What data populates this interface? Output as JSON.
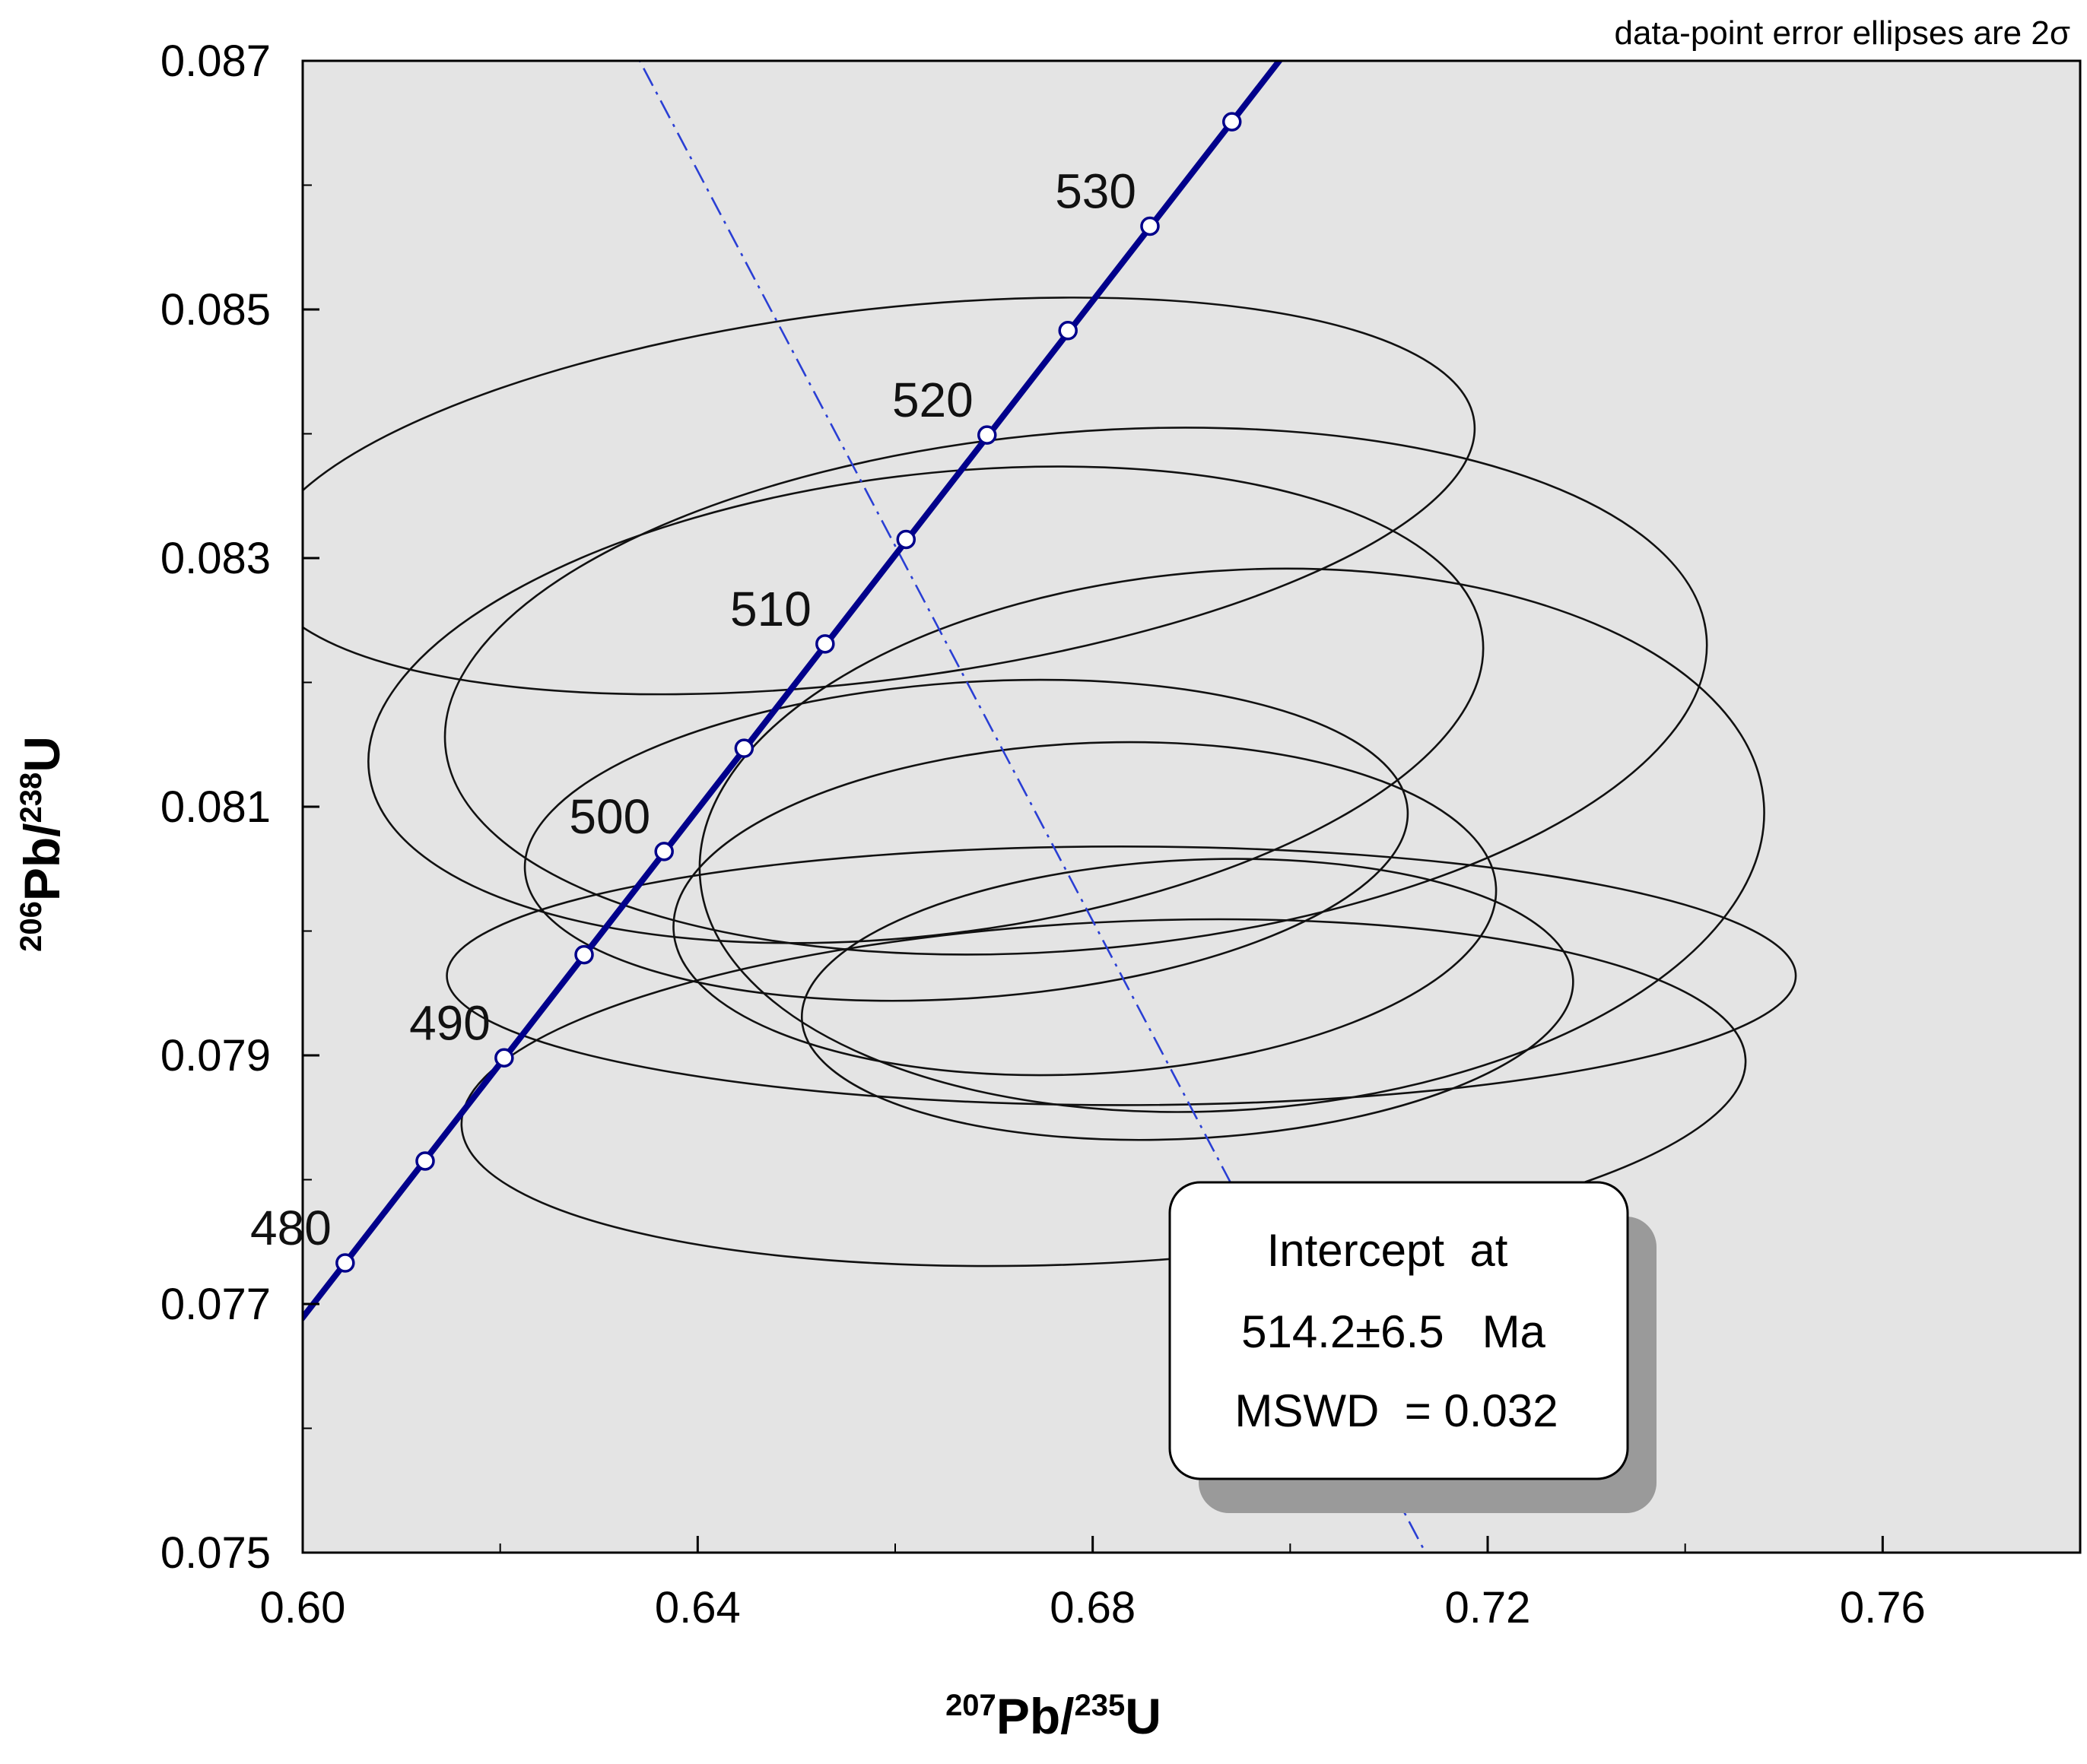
{
  "chart_data": {
    "type": "scatter",
    "subtype": "U-Pb concordia diagram with 2-sigma error ellipses",
    "note": "data-point error ellipses are 2σ",
    "xlabel": {
      "pre": "207",
      "mid": "Pb/",
      "sup2": "235",
      "post": "U"
    },
    "ylabel": {
      "pre": "206",
      "mid": "Pb/",
      "sup2": "238",
      "post": "U"
    },
    "xlim": [
      0.6,
      0.78
    ],
    "ylim": [
      0.075,
      0.087
    ],
    "x_ticks": [
      "0.60",
      "0.64",
      "0.68",
      "0.72",
      "0.76"
    ],
    "y_ticks": [
      "0.075",
      "0.077",
      "0.079",
      "0.081",
      "0.083",
      "0.085",
      "0.087"
    ],
    "x_minor_step": 0.02,
    "y_minor_step": 0.001,
    "grid": false,
    "plot_background": "#e4e4e4",
    "concordia": {
      "color": "#00008b",
      "age_marks": [
        {
          "age": 480,
          "x": 0.6043,
          "y": 0.07733
        },
        {
          "age": 485,
          "x": 0.6124,
          "y": 0.07815
        },
        {
          "age": 490,
          "x": 0.6204,
          "y": 0.07898
        },
        {
          "age": 495,
          "x": 0.6285,
          "y": 0.07981
        },
        {
          "age": 500,
          "x": 0.6366,
          "y": 0.08064
        },
        {
          "age": 505,
          "x": 0.6447,
          "y": 0.08147
        },
        {
          "age": 510,
          "x": 0.6529,
          "y": 0.08231
        },
        {
          "age": 515,
          "x": 0.6611,
          "y": 0.08315
        },
        {
          "age": 520,
          "x": 0.6693,
          "y": 0.08399
        },
        {
          "age": 525,
          "x": 0.6775,
          "y": 0.08483
        },
        {
          "age": 530,
          "x": 0.6858,
          "y": 0.08567
        },
        {
          "age": 535,
          "x": 0.6941,
          "y": 0.08651
        }
      ],
      "labels": [
        "480",
        "490",
        "500",
        "510",
        "520",
        "530"
      ]
    },
    "discordia": {
      "color": "#2a3fd4",
      "points": [
        {
          "x": 0.6328,
          "y": 0.0872
        },
        {
          "x": 0.7137,
          "y": 0.075
        }
      ]
    },
    "ellipses": [
      {
        "cx": 0.6572,
        "cy": 0.0835,
        "rx": 0.0619,
        "ry": 0.00149,
        "angle": 7
      },
      {
        "cx": 0.6783,
        "cy": 0.08193,
        "rx": 0.0641,
        "ry": 0.00208,
        "angle": 5
      },
      {
        "cx": 0.6631,
        "cy": 0.08182,
        "rx": 0.0568,
        "ry": 0.00185,
        "angle": 7
      },
      {
        "cx": 0.6672,
        "cy": 0.08073,
        "rx": 0.0448,
        "ry": 0.00127,
        "angle": 4
      },
      {
        "cx": 0.6941,
        "cy": 0.08073,
        "rx": 0.054,
        "ry": 0.00217,
        "angle": 4
      },
      {
        "cx": 0.6792,
        "cy": 0.08018,
        "rx": 0.0417,
        "ry": 0.00133,
        "angle": 3
      },
      {
        "cx": 0.6896,
        "cy": 0.07945,
        "rx": 0.0391,
        "ry": 0.00112,
        "angle": 3
      },
      {
        "cx": 0.6829,
        "cy": 0.07964,
        "rx": 0.0683,
        "ry": 0.00104,
        "angle": 0
      },
      {
        "cx": 0.6811,
        "cy": 0.0787,
        "rx": 0.0651,
        "ry": 0.00137,
        "angle": 3
      }
    ],
    "result_box": {
      "line1": "Intercept  at",
      "line2": "514.2±6.5   Ma",
      "line3": "MSWD  = 0.032"
    }
  }
}
